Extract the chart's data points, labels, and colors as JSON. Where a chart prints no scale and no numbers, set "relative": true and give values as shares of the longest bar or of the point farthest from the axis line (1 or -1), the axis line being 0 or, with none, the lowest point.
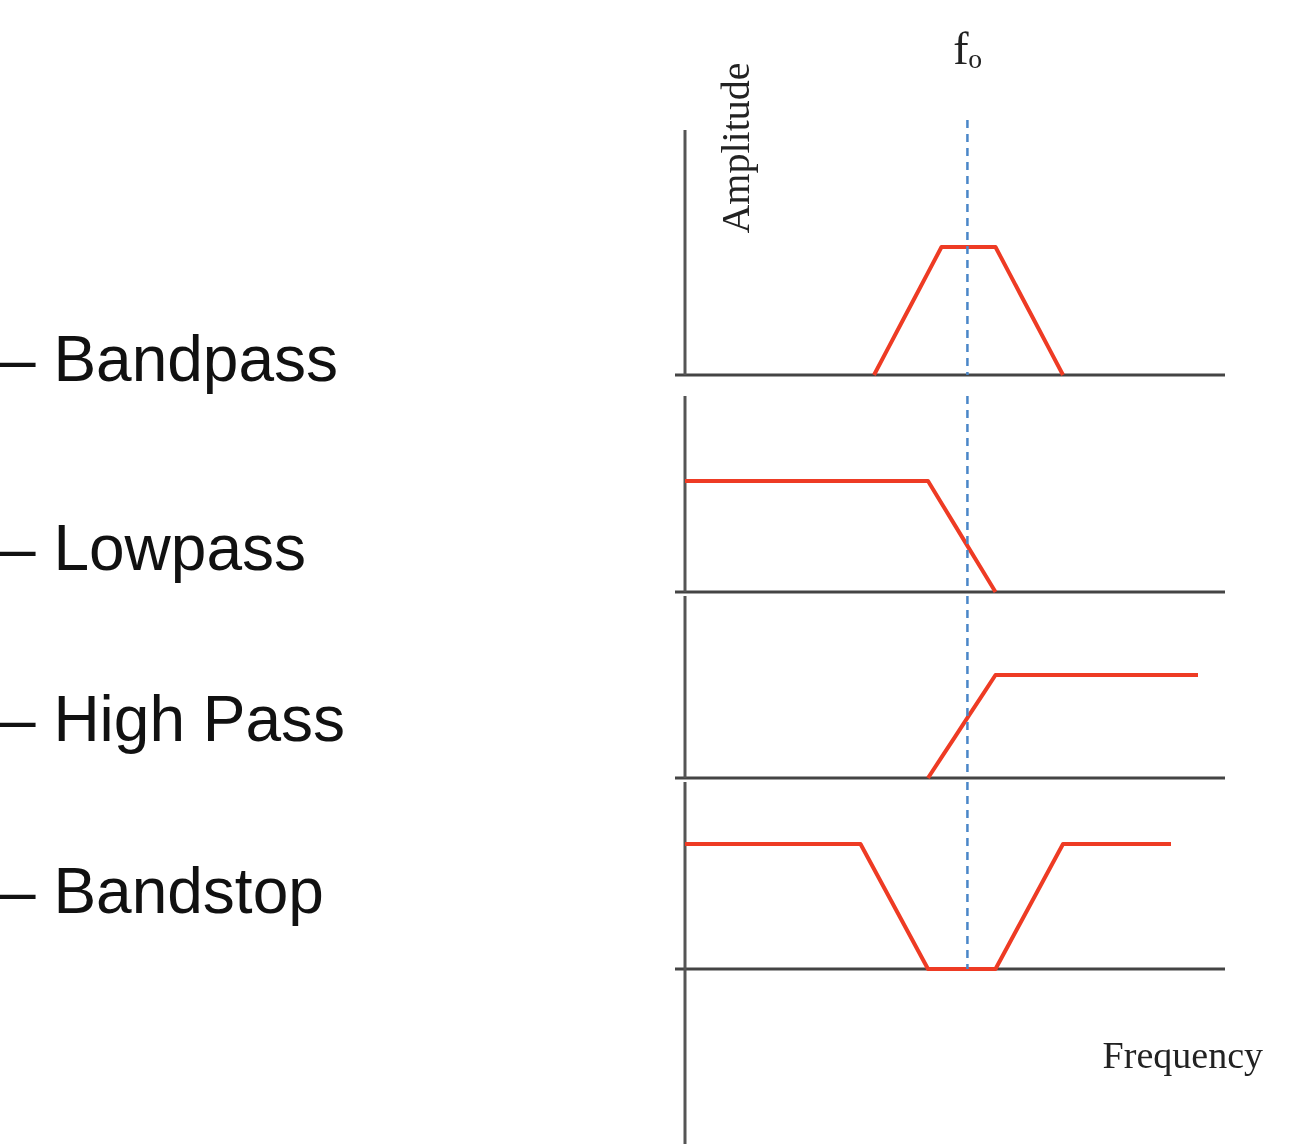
{
  "chart_data": [
    {
      "type": "line",
      "title": "– Bandpass",
      "ylabel": "Amplitude",
      "relative": true,
      "categories": [
        null,
        null,
        null,
        null,
        null,
        null,
        null,
        null,
        null,
        null,
        null,
        null,
        null,
        null,
        null,
        null,
        null,
        null,
        null,
        null,
        null,
        null,
        null,
        null,
        null,
        null,
        null,
        null,
        null,
        null,
        null,
        null,
        null,
        null,
        null,
        null,
        null,
        null,
        null,
        null,
        null
      ],
      "series": [
        {
          "color": "#ee3b24",
          "values": [
            null,
            null,
            null,
            null,
            null,
            null,
            null,
            null,
            null,
            null,
            null,
            null,
            null,
            null,
            0,
            0.2,
            0.4,
            0.6,
            0.8,
            1,
            1,
            1,
            1,
            1,
            0.8,
            0.6,
            0.4,
            0.2,
            0,
            null,
            null,
            null,
            null,
            null,
            null,
            null,
            null,
            null,
            null,
            null,
            null
          ]
        }
      ],
      "annotations": [
        "fₒ"
      ]
    },
    {
      "type": "line",
      "title": "– Lowpass",
      "relative": true,
      "categories": [
        null,
        null,
        null,
        null,
        null,
        null,
        null,
        null,
        null,
        null,
        null,
        null,
        null,
        null,
        null,
        null,
        null,
        null,
        null,
        null,
        null,
        null,
        null,
        null,
        null,
        null,
        null,
        null,
        null,
        null,
        null,
        null,
        null,
        null,
        null,
        null,
        null,
        null,
        null,
        null,
        null
      ],
      "series": [
        {
          "color": "#ee3b24",
          "values": [
            1,
            1,
            1,
            1,
            1,
            1,
            1,
            1,
            1,
            1,
            1,
            1,
            1,
            1,
            1,
            1,
            1,
            1,
            1,
            0.8,
            0.6,
            0.4,
            0.2,
            0,
            null,
            null,
            null,
            null,
            null,
            null,
            null,
            null,
            null,
            null,
            null,
            null,
            null,
            null,
            null,
            null,
            null
          ]
        }
      ]
    },
    {
      "type": "line",
      "title": "– High Pass",
      "relative": true,
      "categories": [
        null,
        null,
        null,
        null,
        null,
        null,
        null,
        null,
        null,
        null,
        null,
        null,
        null,
        null,
        null,
        null,
        null,
        null,
        null,
        null,
        null,
        null,
        null,
        null,
        null,
        null,
        null,
        null,
        null,
        null,
        null,
        null,
        null,
        null,
        null,
        null,
        null,
        null,
        null,
        null,
        null
      ],
      "series": [
        {
          "color": "#ee3b24",
          "values": [
            null,
            null,
            null,
            null,
            null,
            null,
            null,
            null,
            null,
            null,
            null,
            null,
            null,
            null,
            null,
            null,
            null,
            null,
            0,
            0.2,
            0.4,
            0.6,
            0.8,
            1,
            1,
            1,
            1,
            1,
            1,
            1,
            1,
            1,
            1,
            1,
            1,
            1,
            1,
            1,
            1,
            null,
            null
          ]
        }
      ]
    },
    {
      "type": "line",
      "title": "– Bandstop",
      "xlabel": "Frequency",
      "relative": true,
      "categories": [
        null,
        null,
        null,
        null,
        null,
        null,
        null,
        null,
        null,
        null,
        null,
        null,
        null,
        null,
        null,
        null,
        null,
        null,
        null,
        null,
        null,
        null,
        null,
        null,
        null,
        null,
        null,
        null,
        null,
        null,
        null,
        null,
        null,
        null,
        null,
        null,
        null,
        null,
        null,
        null,
        null
      ],
      "series": [
        {
          "color": "#ee3b24",
          "values": [
            1,
            1,
            1,
            1,
            1,
            1,
            1,
            1,
            1,
            1,
            1,
            1,
            1,
            1,
            0.8,
            0.6,
            0.4,
            0.2,
            0,
            0,
            0,
            0,
            0,
            0,
            0.2,
            0.4,
            0.6,
            0.8,
            1,
            1,
            1,
            1,
            1,
            1,
            1,
            1,
            1,
            null,
            null,
            null,
            null
          ]
        }
      ]
    }
  ]
}
